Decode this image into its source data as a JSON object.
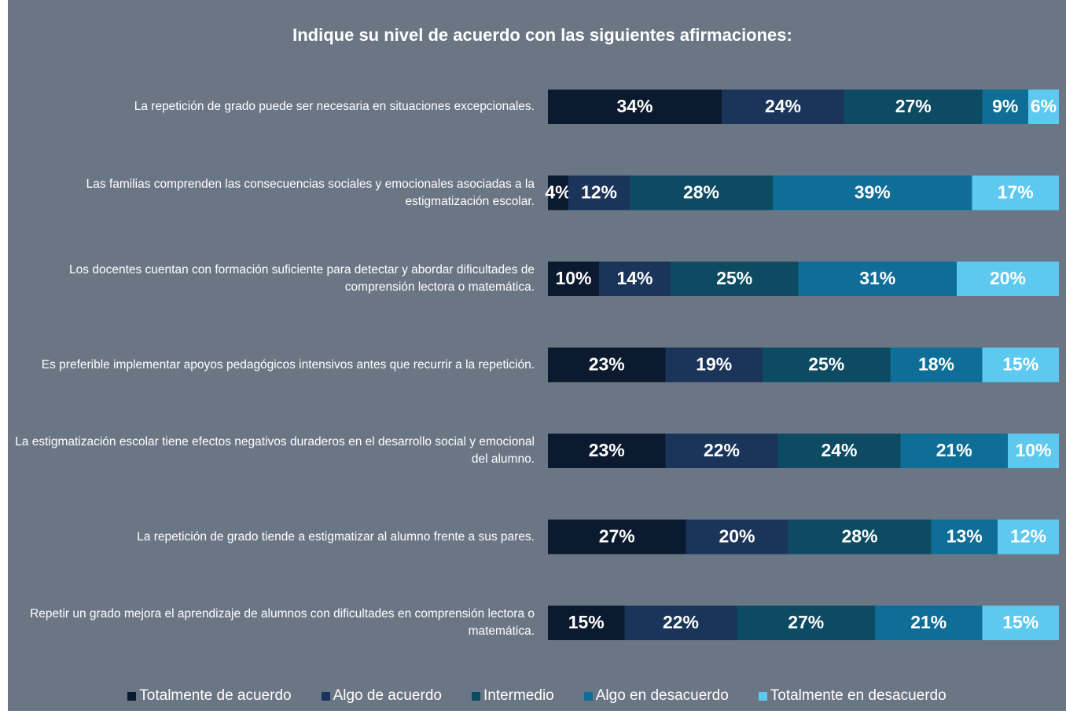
{
  "chart_data": {
    "type": "stacked_bar_horizontal",
    "title": "Indique su nivel de acuerdo con las siguientes afirmaciones:",
    "categories": [
      "La repetición de grado puede ser necesaria en situaciones excepcionales.",
      "Las familias comprenden las consecuencias sociales y emocionales asociadas a la estigmatización escolar.",
      "Los docentes cuentan con formación suficiente para detectar y abordar dificultades de comprensión lectora o matemática.",
      "Es preferible implementar apoyos pedagógicos intensivos antes que recurrir a la repetición.",
      "La estigmatización escolar tiene efectos negativos duraderos en el desarrollo social y emocional del alumno.",
      "La repetición de grado tiende a estigmatizar al alumno frente a sus pares.",
      "Repetir un grado mejora el aprendizaje de alumnos con dificultades en comprensión lectora o matemática."
    ],
    "series": [
      {
        "name": "Totalmente de acuerdo",
        "color": "#0c1a2f",
        "values": [
          34,
          4,
          10,
          23,
          23,
          27,
          15
        ],
        "value_labels": [
          "34%",
          "4%",
          "10%",
          "23%",
          "23%",
          "27%",
          "15%"
        ]
      },
      {
        "name": "Algo de acuerdo",
        "color": "#1b3459",
        "values": [
          24,
          12,
          14,
          19,
          22,
          20,
          22
        ],
        "value_labels": [
          "24%",
          "12%",
          "14%",
          "19%",
          "22%",
          "20%",
          "22%"
        ]
      },
      {
        "name": "Intermedio",
        "color": "#0d4b63",
        "values": [
          27,
          28,
          25,
          25,
          24,
          28,
          27
        ],
        "value_labels": [
          "27%",
          "28%",
          "25%",
          "25%",
          "24%",
          "28%",
          "27%"
        ]
      },
      {
        "name": "Algo en desacuerdo",
        "color": "#0f6e97",
        "values": [
          9,
          39,
          31,
          18,
          21,
          13,
          21
        ],
        "value_labels": [
          "9%",
          "39%",
          "31%",
          "18%",
          "21%",
          "13%",
          "21%"
        ]
      },
      {
        "name": "Totalmente en desacuerdo",
        "color": "#5dc9f0",
        "values": [
          6,
          17,
          20,
          15,
          10,
          12,
          15
        ],
        "value_labels": [
          "6%",
          "17%",
          "20%",
          "15%",
          "10%",
          "12%",
          "15%"
        ]
      }
    ],
    "xlim": [
      0,
      100
    ]
  }
}
